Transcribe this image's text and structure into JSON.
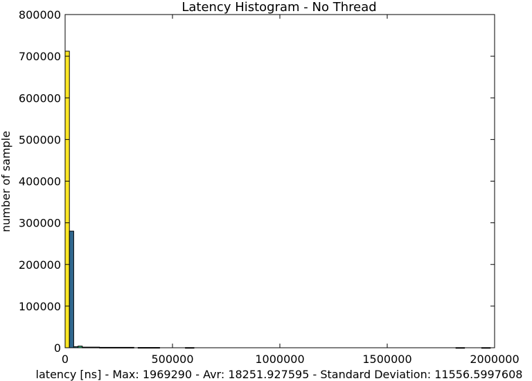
{
  "chart_data": {
    "type": "bar",
    "title": "Latency Histogram - No Thread",
    "xlabel": "latency [ns] - Max: 1969290 - Avr: 18251.927595 - Standard Deviation: 11556.5997608",
    "ylabel": "number of sample",
    "xlim": [
      0,
      2000000
    ],
    "ylim": [
      0,
      800000
    ],
    "x_ticks": [
      0,
      500000,
      1000000,
      1500000,
      2000000
    ],
    "x_tick_labels": [
      "0",
      "500000",
      "1000000",
      "1500000",
      "2000000"
    ],
    "y_ticks": [
      0,
      100000,
      200000,
      300000,
      400000,
      500000,
      600000,
      700000,
      800000
    ],
    "y_tick_labels": [
      "0",
      "100000",
      "200000",
      "300000",
      "400000",
      "500000",
      "600000",
      "700000",
      "800000"
    ],
    "grid": false,
    "bins": [
      {
        "x0": 0,
        "x1": 20000,
        "count": 712000,
        "color": "#fde725"
      },
      {
        "x0": 20000,
        "x1": 40000,
        "count": 280000,
        "color": "#31688e"
      },
      {
        "x0": 40000,
        "x1": 60000,
        "count": 2500,
        "color": "#26828e"
      },
      {
        "x0": 60000,
        "x1": 80000,
        "count": 4000,
        "color": "#35b779"
      },
      {
        "x0": 80000,
        "x1": 160000,
        "count": 1500,
        "color": "#21918c"
      },
      {
        "x0": 160000,
        "x1": 320000,
        "count": 1000,
        "color": "#3e4989"
      },
      {
        "x0": 340000,
        "x1": 440000,
        "count": 700,
        "color": "#482878"
      },
      {
        "x0": 560000,
        "x1": 600000,
        "count": 500,
        "color": "#440154"
      },
      {
        "x0": 1820000,
        "x1": 1860000,
        "count": 400,
        "color": "#440154"
      },
      {
        "x0": 1940000,
        "x1": 1980000,
        "count": 400,
        "color": "#440154"
      }
    ]
  }
}
